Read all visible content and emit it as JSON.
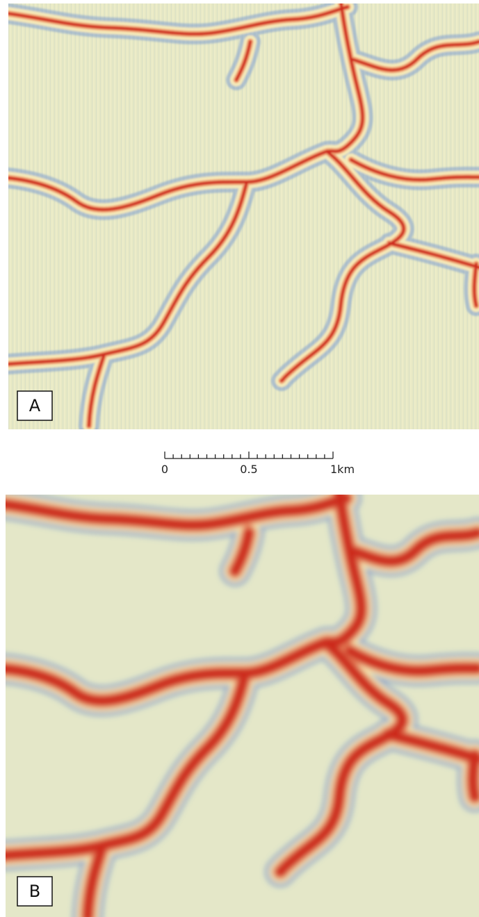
{
  "panels": [
    {
      "label": "A"
    },
    {
      "label": "B"
    }
  ],
  "scale_bar": {
    "labels": [
      "0",
      "0.5",
      "1km"
    ]
  }
}
